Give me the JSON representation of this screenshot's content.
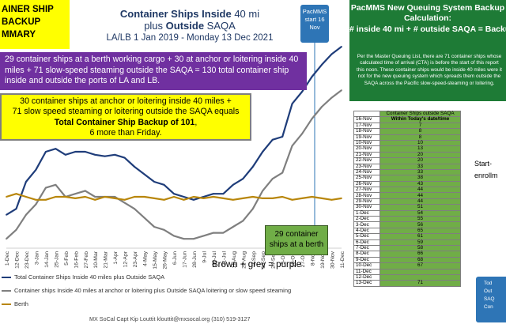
{
  "left_title": {
    "lines": [
      "AINER SHIP",
      "BACKUP",
      "MMARY"
    ]
  },
  "main_title": {
    "line1_bold": "Container Ships Inside",
    "line1_rest": " 40 mi",
    "line2_pre": "plus ",
    "line2_bold": "Outside",
    "line2_rest": " SAQA",
    "line3": "LA/LB 1 Jan 2019 - Monday 13 Dec 2021"
  },
  "pacmms_box": {
    "lines": [
      "PacMMS",
      "start 16",
      "Nov"
    ]
  },
  "callout_purple": {
    "text": "29 container ships at a berth  working cargo + 30 at anchor or loitering inside 40 miles + 71 slow-speed  steaming outside the SAQA = 130 total container ship  inside and outside the ports of LA and LB."
  },
  "callout_yellow": {
    "line1": "30 container ships at anchor or loitering inside 40 miles +",
    "line2": "71 slow speed steaming or loitering outside the SAQA equals",
    "line3_bold": "Total Container Ship Backup of 101",
    "line3_rest": ",",
    "line4": "6 more than Friday."
  },
  "green_callout": {
    "line1": "29 container",
    "line2": "ships at a berth"
  },
  "brown_grey_note": "Brown + grey = purple",
  "legend": {
    "items": [
      {
        "label": "Total Container Ships Inside 40 miles plus Outside SAQA",
        "color": "#1f3d7a"
      },
      {
        "label": "Container ships Inside 40 miles at anchor or loitering plus Outside SAQA loitering or slow speed steaming",
        "color": "#7f7f7f"
      },
      {
        "label": "Berth",
        "color": "#b8860b"
      }
    ]
  },
  "footer": "MX SoCal Capt Kip Louttit   klouttit@mxsocal.org   (310) 519-3127",
  "chart_data": {
    "type": "line",
    "xlabel": "",
    "ylabel": "",
    "ylim": [
      0,
      140
    ],
    "x": [
      "1-Dec",
      "12-Dec",
      "23-Dec",
      "3-Jan",
      "14-Jan",
      "25-Jan",
      "5-Feb",
      "16-Feb",
      "27-Feb",
      "10-Mar",
      "21-Mar",
      "1-Apr",
      "12-Apr",
      "23-Apr",
      "4-May",
      "15-May",
      "26-May",
      "6-Jun",
      "17-Jun",
      "28-Jun",
      "9-Jul",
      "20-Jul",
      "31-Jul",
      "11-Aug",
      "22-Aug",
      "2-Sep",
      "13-Sep",
      "24-Sep",
      "5-Oct",
      "16-Oct",
      "27-Oct",
      "8-Nov",
      "19-Nov",
      "30-Nov",
      "11-Dec"
    ],
    "series": [
      {
        "name": "Total Container Ships Inside 40 miles plus Outside SAQA",
        "color": "#1f3d7a",
        "values": [
          18,
          22,
          40,
          48,
          60,
          62,
          58,
          60,
          60,
          58,
          57,
          58,
          56,
          50,
          45,
          40,
          38,
          32,
          30,
          28,
          30,
          32,
          32,
          38,
          42,
          50,
          60,
          68,
          70,
          92,
          100,
          110,
          118,
          125,
          130
        ]
      },
      {
        "name": "Container ships Inside 40 miles at anchor or loitering plus Outside SAQA loitering or slow speed steaming",
        "color": "#7f7f7f",
        "values": [
          2,
          8,
          18,
          25,
          36,
          38,
          30,
          32,
          34,
          30,
          30,
          30,
          26,
          22,
          16,
          10,
          8,
          4,
          2,
          2,
          4,
          6,
          6,
          10,
          14,
          22,
          34,
          42,
          46,
          64,
          72,
          82,
          90,
          96,
          101
        ]
      },
      {
        "name": "Berth",
        "color": "#b8860b",
        "values": [
          30,
          32,
          30,
          28,
          28,
          30,
          30,
          29,
          30,
          28,
          30,
          29,
          28,
          30,
          30,
          29,
          28,
          30,
          28,
          30,
          29,
          30,
          29,
          28,
          29,
          30,
          29,
          29,
          30,
          28,
          29,
          30,
          29,
          28,
          29
        ]
      }
    ]
  },
  "right_panel": {
    "header_line1": "PacMMS  New Queuing System Backup",
    "header_line2": "Calculation:",
    "header_line3": "# inside  40 mi  + # outside  SAQA = Backup",
    "note": "Per the Master Queuing List, there are 71 container ships whose calculated time of arrival (CTA) is before the start of this report this noon.  These container ships would be inside 40 miles were it not for the new queuing system which spreads them outside the SAQA across the Pacific slow-speed-steaming or loitering.",
    "table_header": "Container Ships outside SAQA",
    "table_rows": [
      {
        "date": "16-Nov",
        "value": "Within Today's date/time",
        "today": true
      },
      {
        "date": "17-Nov",
        "value": "7"
      },
      {
        "date": "18-Nov",
        "value": "8"
      },
      {
        "date": "19-Nov",
        "value": "8"
      },
      {
        "date": "10-Nov",
        "value": "10"
      },
      {
        "date": "20-Nov",
        "value": "13"
      },
      {
        "date": "21-Nov",
        "value": "20"
      },
      {
        "date": "22-Nov",
        "value": "20"
      },
      {
        "date": "23-Nov",
        "value": "33"
      },
      {
        "date": "24-Nov",
        "value": "33"
      },
      {
        "date": "25-Nov",
        "value": "38"
      },
      {
        "date": "26-Nov",
        "value": "43"
      },
      {
        "date": "27-Nov",
        "value": "44"
      },
      {
        "date": "28-Nov",
        "value": "44"
      },
      {
        "date": "29-Nov",
        "value": "44"
      },
      {
        "date": "30-Nov",
        "value": "51"
      },
      {
        "date": "1-Dec",
        "value": "54"
      },
      {
        "date": "2-Dec",
        "value": "55"
      },
      {
        "date": "3-Dec",
        "value": "56"
      },
      {
        "date": "4-Dec",
        "value": "65"
      },
      {
        "date": "5-Dec",
        "value": "61"
      },
      {
        "date": "6-Dec",
        "value": "59"
      },
      {
        "date": "7-Dec",
        "value": "58"
      },
      {
        "date": "8-Dec",
        "value": "66"
      },
      {
        "date": "9-Dec",
        "value": "68"
      },
      {
        "date": "10-Dec",
        "value": "67"
      },
      {
        "date": "11-Dec",
        "value": ""
      },
      {
        "date": "12-Dec",
        "value": ""
      },
      {
        "date": "13-Dec",
        "value": "71"
      }
    ],
    "side_text": [
      "Start-",
      "enrollm"
    ],
    "corner_box": [
      "Tod",
      "Out",
      "SAQ",
      "Con"
    ]
  }
}
